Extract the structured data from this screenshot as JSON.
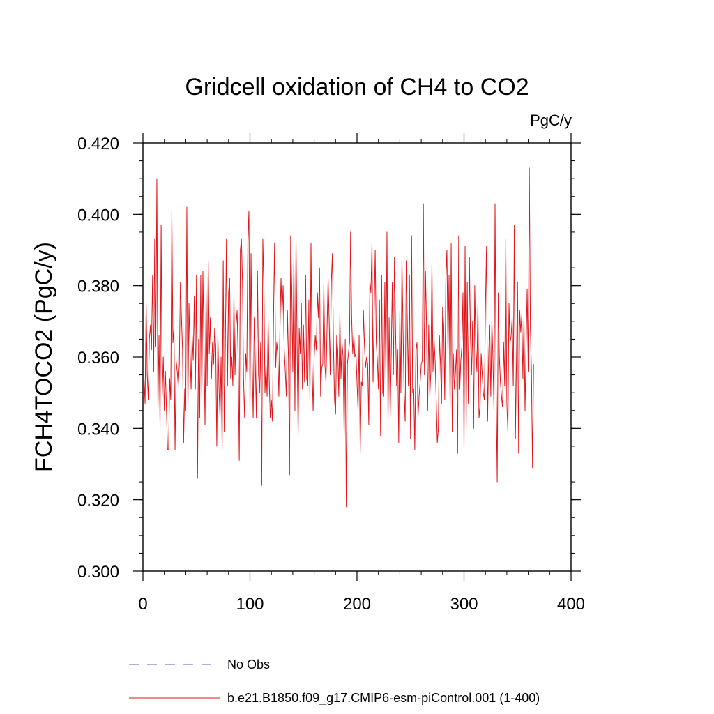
{
  "chart_data": {
    "type": "line",
    "title": "Gridcell oxidation of CH4 to CO2",
    "units": "PgC/y",
    "xlabel": "",
    "ylabel": "FCH4TOCO2  (PgC/y)",
    "xlim": [
      0,
      400
    ],
    "ylim": [
      0.3,
      0.42
    ],
    "x_ticks": [
      0,
      100,
      200,
      300,
      400
    ],
    "x_tick_labels": [
      "0",
      "100",
      "200",
      "300",
      "400"
    ],
    "y_ticks": [
      0.3,
      0.32,
      0.34,
      0.36,
      0.38,
      0.4,
      0.42
    ],
    "y_tick_labels": [
      "0.300",
      "0.320",
      "0.340",
      "0.360",
      "0.380",
      "0.400",
      "0.420"
    ],
    "y_minor_step": 0.005,
    "x_minor_step": 20,
    "grid": false,
    "series": [
      {
        "name": "b.e21.B1850.f09_g17.CMIP6-esm-piControl.001 (1-400)",
        "color": "#e0141a",
        "style": "solid",
        "x_start": 1,
        "x_step": 1,
        "values": [
          0.354,
          0.347,
          0.375,
          0.355,
          0.348,
          0.365,
          0.369,
          0.362,
          0.383,
          0.356,
          0.393,
          0.363,
          0.41,
          0.345,
          0.366,
          0.34,
          0.397,
          0.349,
          0.36,
          0.345,
          0.356,
          0.345,
          0.334,
          0.334,
          0.354,
          0.348,
          0.401,
          0.364,
          0.368,
          0.334,
          0.359,
          0.356,
          0.352,
          0.358,
          0.381,
          0.371,
          0.362,
          0.336,
          0.351,
          0.345,
          0.402,
          0.345,
          0.375,
          0.362,
          0.351,
          0.366,
          0.359,
          0.377,
          0.351,
          0.383,
          0.326,
          0.365,
          0.343,
          0.383,
          0.348,
          0.384,
          0.364,
          0.341,
          0.379,
          0.352,
          0.387,
          0.361,
          0.371,
          0.354,
          0.364,
          0.358,
          0.368,
          0.363,
          0.335,
          0.366,
          0.352,
          0.343,
          0.36,
          0.334,
          0.387,
          0.339,
          0.364,
          0.393,
          0.352,
          0.378,
          0.382,
          0.354,
          0.36,
          0.352,
          0.377,
          0.355,
          0.369,
          0.373,
          0.359,
          0.331,
          0.39,
          0.393,
          0.381,
          0.354,
          0.343,
          0.361,
          0.356,
          0.392,
          0.401,
          0.345,
          0.389,
          0.359,
          0.343,
          0.371,
          0.358,
          0.343,
          0.384,
          0.355,
          0.35,
          0.364,
          0.324,
          0.393,
          0.38,
          0.35,
          0.358,
          0.349,
          0.37,
          0.353,
          0.343,
          0.348,
          0.342,
          0.371,
          0.392,
          0.357,
          0.364,
          0.361,
          0.349,
          0.368,
          0.382,
          0.372,
          0.38,
          0.362,
          0.356,
          0.349,
          0.373,
          0.359,
          0.327,
          0.394,
          0.38,
          0.356,
          0.388,
          0.345,
          0.393,
          0.364,
          0.338,
          0.368,
          0.361,
          0.375,
          0.351,
          0.369,
          0.353,
          0.383,
          0.354,
          0.352,
          0.376,
          0.348,
          0.392,
          0.358,
          0.345,
          0.36,
          0.366,
          0.362,
          0.378,
          0.371,
          0.385,
          0.349,
          0.357,
          0.358,
          0.38,
          0.358,
          0.353,
          0.368,
          0.382,
          0.37,
          0.355,
          0.381,
          0.389,
          0.363,
          0.348,
          0.344,
          0.366,
          0.362,
          0.349,
          0.372,
          0.354,
          0.364,
          0.36,
          0.338,
          0.365,
          0.318,
          0.358,
          0.361,
          0.364,
          0.395,
          0.371,
          0.361,
          0.366,
          0.36,
          0.361,
          0.353,
          0.345,
          0.366,
          0.333,
          0.353,
          0.352,
          0.373,
          0.363,
          0.357,
          0.36,
          0.358,
          0.341,
          0.381,
          0.378,
          0.392,
          0.353,
          0.372,
          0.39,
          0.364,
          0.359,
          0.351,
          0.376,
          0.338,
          0.383,
          0.35,
          0.349,
          0.381,
          0.354,
          0.395,
          0.342,
          0.371,
          0.343,
          0.361,
          0.381,
          0.355,
          0.388,
          0.368,
          0.352,
          0.362,
          0.336,
          0.373,
          0.35,
          0.387,
          0.368,
          0.35,
          0.342,
          0.387,
          0.37,
          0.352,
          0.383,
          0.337,
          0.394,
          0.35,
          0.351,
          0.334,
          0.362,
          0.364,
          0.343,
          0.349,
          0.353,
          0.358,
          0.359,
          0.403,
          0.355,
          0.384,
          0.368,
          0.345,
          0.369,
          0.349,
          0.356,
          0.386,
          0.356,
          0.365,
          0.359,
          0.348,
          0.336,
          0.34,
          0.366,
          0.358,
          0.347,
          0.374,
          0.369,
          0.348,
          0.382,
          0.39,
          0.361,
          0.383,
          0.345,
          0.392,
          0.339,
          0.361,
          0.351,
          0.356,
          0.362,
          0.333,
          0.394,
          0.351,
          0.359,
          0.363,
          0.378,
          0.334,
          0.391,
          0.34,
          0.381,
          0.347,
          0.388,
          0.366,
          0.355,
          0.37,
          0.34,
          0.38,
          0.363,
          0.356,
          0.375,
          0.343,
          0.346,
          0.361,
          0.355,
          0.35,
          0.348,
          0.374,
          0.391,
          0.342,
          0.36,
          0.369,
          0.349,
          0.37,
          0.36,
          0.345,
          0.403,
          0.351,
          0.325,
          0.378,
          0.36,
          0.353,
          0.349,
          0.346,
          0.364,
          0.352,
          0.393,
          0.347,
          0.339,
          0.375,
          0.364,
          0.366,
          0.371,
          0.352,
          0.397,
          0.337,
          0.36,
          0.381,
          0.333,
          0.373,
          0.367,
          0.372,
          0.354,
          0.371,
          0.345,
          0.363,
          0.379,
          0.356,
          0.413,
          0.368,
          0.356,
          0.329,
          0.358
        ]
      },
      {
        "name": "No Obs",
        "color": "#6a5acd",
        "style": "dashed",
        "values": []
      }
    ],
    "legend_position": "bottom-left"
  }
}
